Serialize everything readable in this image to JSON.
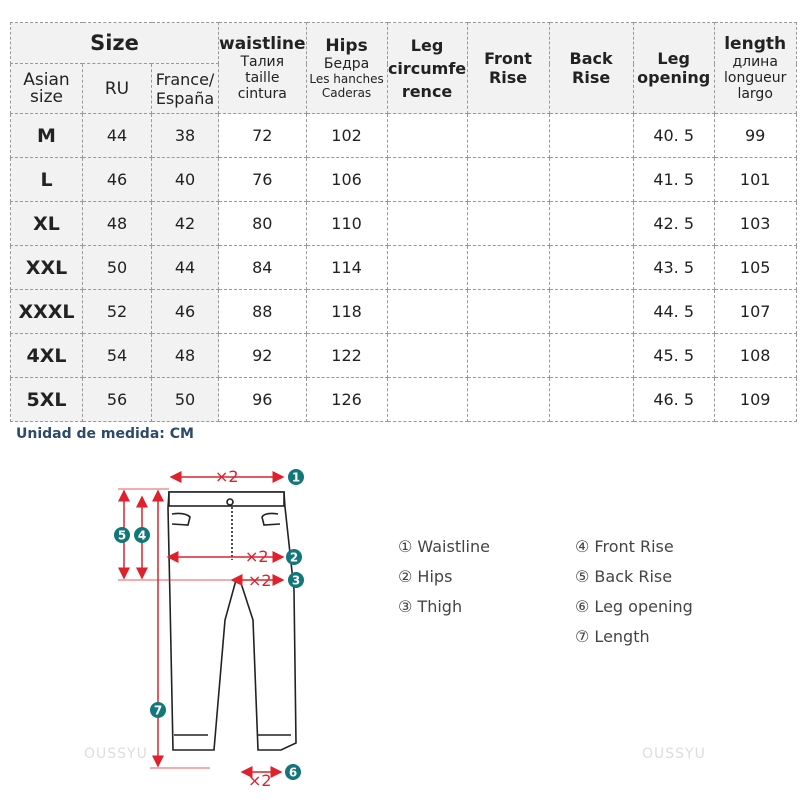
{
  "header": {
    "size": "Size",
    "asian_size": "Asian size",
    "ru": "RU",
    "france": "France/ España",
    "waistline": "waistline",
    "waistline_sub": "Талия taille cintura",
    "hips": "Hips",
    "hips_sub1": "Бедра",
    "hips_sub2": "Les hanches",
    "hips_sub3": "Caderas",
    "leg_circ": "Leg circumfe rence",
    "front_rise": "Front Rise",
    "back_rise": "Back Rise",
    "leg_opening": "Leg opening",
    "length": "length",
    "length_sub": "длина longueur largo"
  },
  "rows": [
    [
      "M",
      "44",
      "38",
      "72",
      "102",
      "",
      "",
      "",
      "40. 5",
      "99"
    ],
    [
      "L",
      "46",
      "40",
      "76",
      "106",
      "",
      "",
      "",
      "41. 5",
      "101"
    ],
    [
      "XL",
      "48",
      "42",
      "80",
      "110",
      "",
      "",
      "",
      "42. 5",
      "103"
    ],
    [
      "XXL",
      "50",
      "44",
      "84",
      "114",
      "",
      "",
      "",
      "43. 5",
      "105"
    ],
    [
      "XXXL",
      "52",
      "46",
      "88",
      "118",
      "",
      "",
      "",
      "44. 5",
      "107"
    ],
    [
      "4XL",
      "54",
      "48",
      "92",
      "122",
      "",
      "",
      "",
      "45. 5",
      "108"
    ],
    [
      "5XL",
      "56",
      "50",
      "96",
      "126",
      "",
      "",
      "",
      "46. 5",
      "109"
    ]
  ],
  "unit": "Unidad de medida: CM",
  "legend": [
    "① Waistline",
    "② Hips",
    "③ Thigh",
    "④ Front Rise",
    "⑤ Back Rise",
    "⑥ Leg opening",
    "⑦ Length"
  ],
  "diagram": {
    "x2": "×2",
    "markers": [
      "1",
      "2",
      "3",
      "4",
      "5",
      "6",
      "7"
    ]
  },
  "watermark": "OUSSYU",
  "colors": {
    "arrow": "#e0202a",
    "marker": "#13767a",
    "unit_text": "#2d4a6b"
  }
}
